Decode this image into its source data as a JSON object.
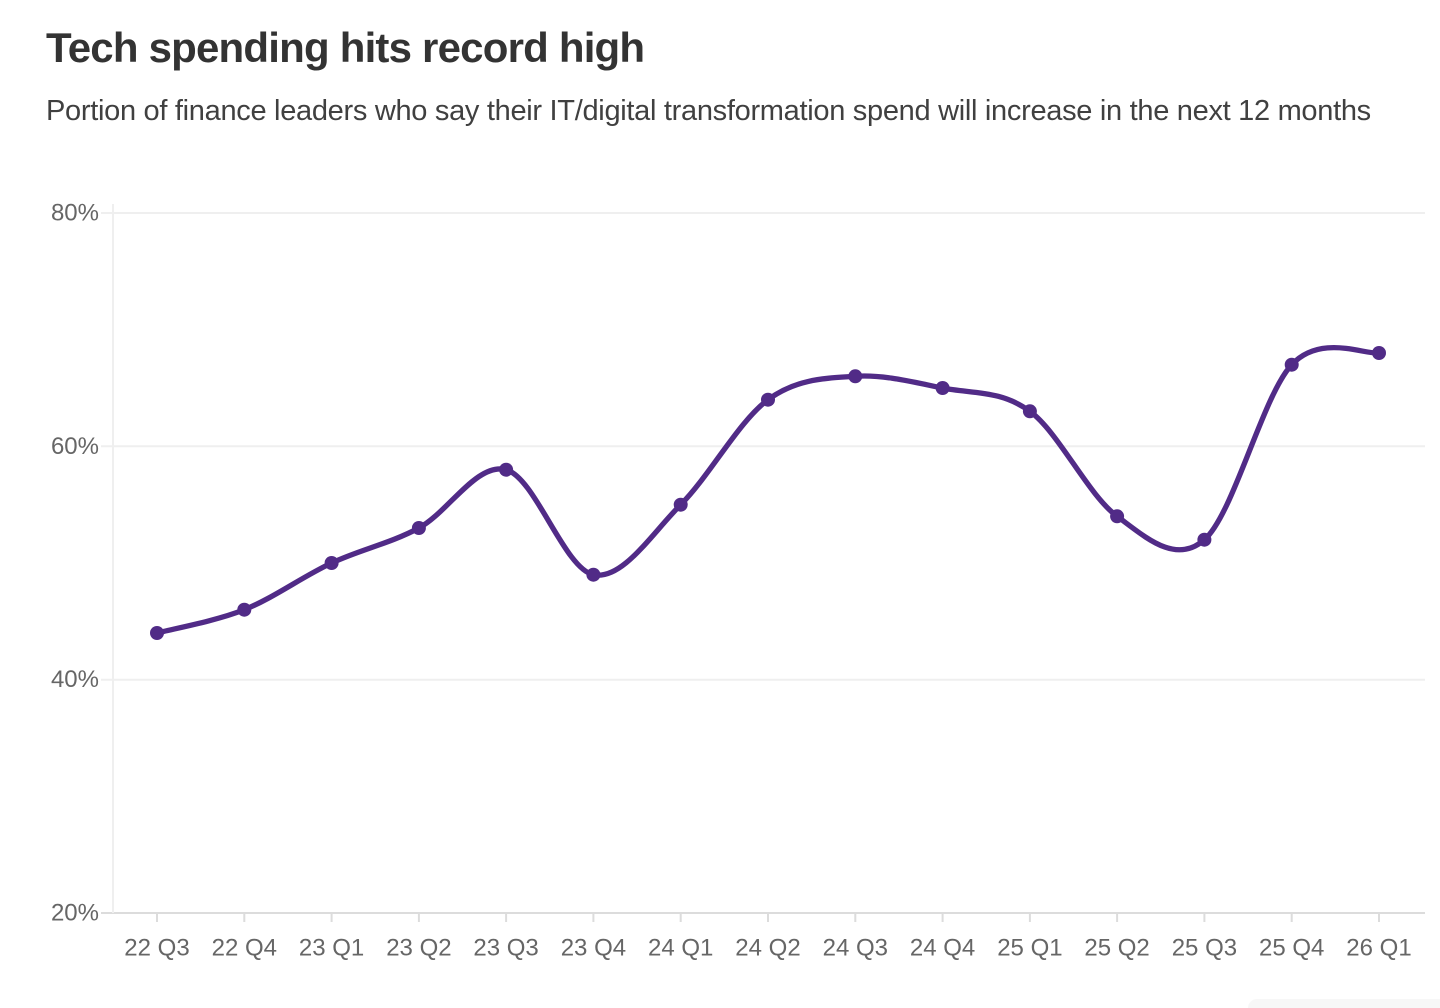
{
  "header": {
    "title": "Tech spending hits record high",
    "subtitle": "Portion of finance leaders who say their IT/digital transformation spend will increase in the next 12 months"
  },
  "chart_data": {
    "type": "line",
    "title": "Tech spending hits record high",
    "subtitle": "Portion of finance leaders who say their IT/digital transformation spend will increase in the next 12 months",
    "categories": [
      "22 Q3",
      "22 Q4",
      "23 Q1",
      "23 Q2",
      "23 Q3",
      "23 Q4",
      "24 Q1",
      "24 Q2",
      "24 Q3",
      "24 Q4",
      "25 Q1",
      "25 Q2",
      "25 Q3",
      "25 Q4",
      "26 Q1"
    ],
    "values": [
      44,
      46,
      50,
      53,
      58,
      49,
      55,
      64,
      66,
      65,
      63,
      54,
      52,
      67,
      68
    ],
    "unit": "%",
    "ylim": [
      20,
      80
    ],
    "yticks": [
      80,
      60,
      40,
      20
    ],
    "ytick_labels": [
      "80%",
      "60%",
      "40%",
      "20%"
    ],
    "xlabel": "",
    "ylabel": "",
    "grid": true,
    "legend": false,
    "smooth": true,
    "marker": "circle",
    "line_color": "#512b87"
  },
  "colors": {
    "line": "#512b87",
    "title_text": "#333333",
    "subtitle_text": "#404040",
    "tick_label": "#666666",
    "gridline": "#efefef",
    "axis_line": "#dcdcdc",
    "background": "#ffffff",
    "watermark": "#f7f7f7"
  }
}
